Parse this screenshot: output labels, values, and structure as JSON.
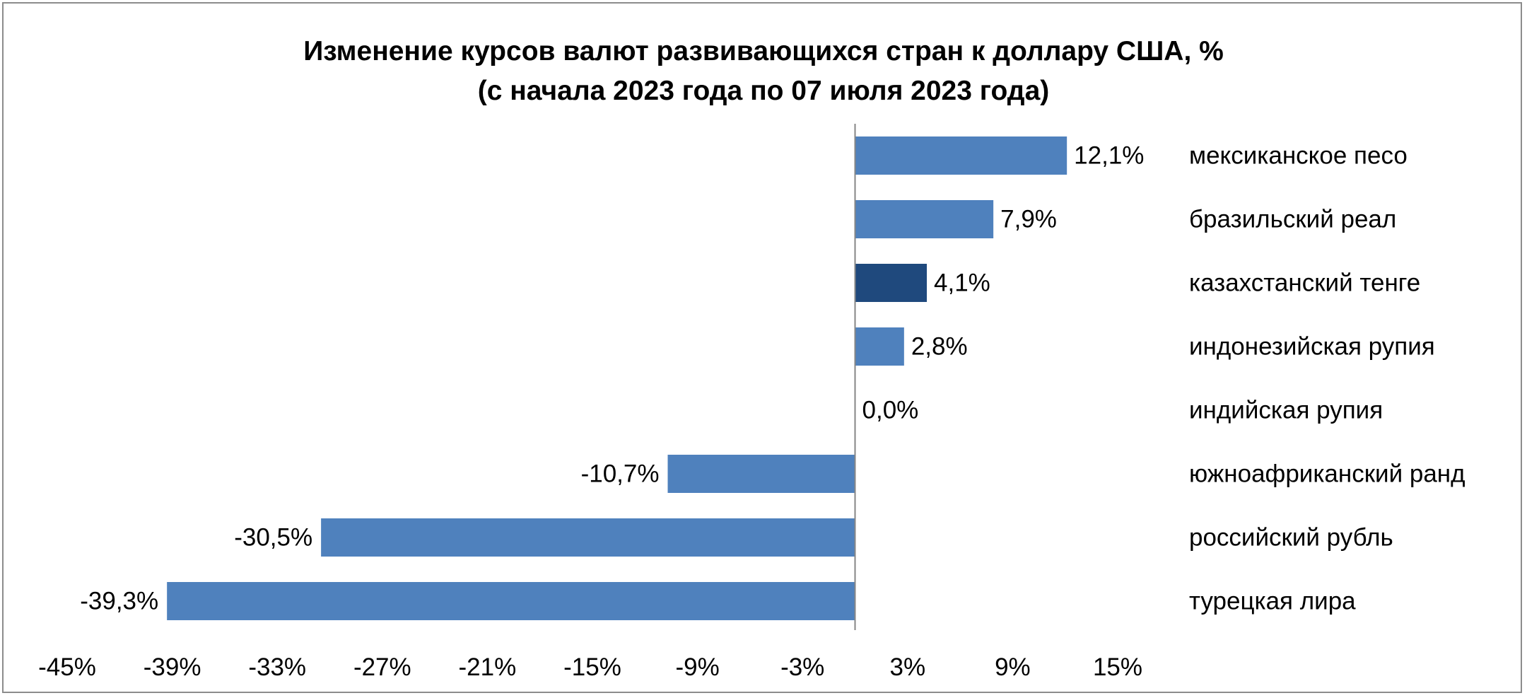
{
  "chart_data": {
    "type": "bar",
    "orientation": "horizontal",
    "title": "Изменение курсов валют развивающихся стран к доллару США, %",
    "subtitle": "(с начала 2023 года по 07 июля 2023 года)",
    "categories": [
      "мексиканское песо",
      "бразильский реал",
      "казахстанский тенге",
      "индонезийская рупия",
      "индийская рупия",
      "южноафриканский ранд",
      "российский рубль",
      "турецкая лира"
    ],
    "values": [
      12.1,
      7.9,
      4.1,
      2.8,
      0.0,
      -10.7,
      -30.5,
      -39.3
    ],
    "value_labels": [
      "12,1%",
      "7,9%",
      "4,1%",
      "2,8%",
      "0,0%",
      "-10,7%",
      "-30,5%",
      "-39,3%"
    ],
    "xlim": [
      -45,
      15
    ],
    "xticks": [
      -45,
      -39,
      -33,
      -27,
      -21,
      -15,
      -9,
      -3,
      3,
      9,
      15
    ],
    "xtick_labels": [
      "-45%",
      "-39%",
      "-33%",
      "-27%",
      "-21%",
      "-15%",
      "-9%",
      "-3%",
      "3%",
      "9%",
      "15%"
    ],
    "grid": false,
    "colors": {
      "bar": "#4f81bd",
      "highlight": "#1f497d",
      "highlight_category": "казахстанский тенге"
    }
  }
}
